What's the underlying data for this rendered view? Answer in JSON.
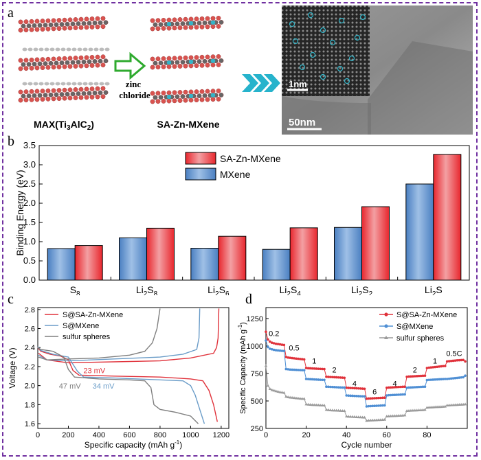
{
  "panel_letters": {
    "a": "a",
    "b": "b",
    "c": "c",
    "d": "d"
  },
  "panel_a": {
    "max_label_main": "MAX(Ti",
    "max_sub3": "3",
    "max_alc": "AlC",
    "max_sub2": "2",
    "max_close": ")",
    "arrow_text_line1": "zinc",
    "arrow_text_line2": "chloride",
    "mxene_label": "SA-Zn-MXene",
    "scale_small": "1nm",
    "scale_large": "50nm",
    "colors": {
      "ti": "#d9534f",
      "c": "#666666",
      "al": "#bbbbbb",
      "zn": "#33b5c9",
      "arrow": "#2eaa2e",
      "chevrons": "#26b3cc"
    }
  },
  "chart_data": [
    {
      "id": "b",
      "type": "bar",
      "ylabel": "Binding Energy (eV)",
      "ylim": [
        0,
        3.5
      ],
      "yticks": [
        "0.0",
        "0.5",
        "1.0",
        "1.5",
        "2.0",
        "2.5",
        "3.0",
        "3.5"
      ],
      "categories": [
        "S8",
        "Li2S8",
        "Li2S6",
        "Li2S4",
        "Li2S2",
        "Li2S"
      ],
      "category_labels": [
        {
          "base": "S",
          "sub": "8",
          "tail": "",
          "sub2": ""
        },
        {
          "base": "Li",
          "sub": "2",
          "tail": "S",
          "sub2": "8"
        },
        {
          "base": "Li",
          "sub": "2",
          "tail": "S",
          "sub2": "6"
        },
        {
          "base": "Li",
          "sub": "2",
          "tail": "S",
          "sub2": "4"
        },
        {
          "base": "Li",
          "sub": "2",
          "tail": "S",
          "sub2": "2"
        },
        {
          "base": "Li",
          "sub": "2",
          "tail": "S",
          "sub2": ""
        }
      ],
      "series": [
        {
          "name": "MXene",
          "color": "#4a7fc1",
          "values": [
            0.82,
            1.1,
            0.83,
            0.8,
            1.37,
            2.5
          ]
        },
        {
          "name": "SA-Zn-MXene",
          "color": "#e8262d",
          "values": [
            0.9,
            1.35,
            1.14,
            1.36,
            1.91,
            3.27
          ]
        }
      ],
      "legend": "top-center"
    },
    {
      "id": "c",
      "type": "line",
      "xlabel": "Specific capacity (mAh g",
      "xlabel_sup": "-1",
      "xlabel_close": ")",
      "ylabel": "Voltage (V)",
      "xlim": [
        0,
        1250
      ],
      "ylim": [
        1.55,
        2.82
      ],
      "xticks": [
        "0",
        "200",
        "400",
        "600",
        "800",
        "1000",
        "1200"
      ],
      "yticks": [
        "1.6",
        "1.8",
        "2.0",
        "2.2",
        "2.4",
        "2.6",
        "2.8"
      ],
      "legend": "top-left",
      "annotations": [
        {
          "text": "23 mV",
          "color": "#e0313a",
          "x": 370,
          "y": 2.13
        },
        {
          "text": "34 mV",
          "color": "#6a9cc8",
          "x": 430,
          "y": 1.97
        },
        {
          "text": "47 mV",
          "color": "#7f7f7f",
          "x": 210,
          "y": 1.97
        }
      ],
      "series": [
        {
          "name": "S@SA-Zn-MXene",
          "color": "#e0313a",
          "discharge": [
            [
              0,
              2.4
            ],
            [
              20,
              2.36
            ],
            [
              80,
              2.33
            ],
            [
              150,
              2.31
            ],
            [
              200,
              2.27
            ],
            [
              230,
              2.16
            ],
            [
              270,
              2.11
            ],
            [
              500,
              2.1
            ],
            [
              800,
              2.09
            ],
            [
              1000,
              2.07
            ],
            [
              1080,
              2.05
            ],
            [
              1120,
              1.95
            ],
            [
              1150,
              1.8
            ],
            [
              1175,
              1.62
            ]
          ],
          "charge": [
            [
              5,
              2.34
            ],
            [
              60,
              2.27
            ],
            [
              200,
              2.24
            ],
            [
              500,
              2.25
            ],
            [
              800,
              2.26
            ],
            [
              1000,
              2.29
            ],
            [
              1150,
              2.34
            ],
            [
              1170,
              2.4
            ],
            [
              1180,
              2.5
            ],
            [
              1185,
              2.81
            ]
          ]
        },
        {
          "name": "S@MXene",
          "color": "#6a9cc8",
          "discharge": [
            [
              0,
              2.41
            ],
            [
              20,
              2.37
            ],
            [
              100,
              2.33
            ],
            [
              200,
              2.3
            ],
            [
              260,
              2.15
            ],
            [
              300,
              2.09
            ],
            [
              500,
              2.08
            ],
            [
              800,
              2.06
            ],
            [
              950,
              2.05
            ],
            [
              1000,
              2.0
            ],
            [
              1030,
              1.9
            ],
            [
              1060,
              1.75
            ],
            [
              1090,
              1.6
            ]
          ],
          "charge": [
            [
              5,
              2.32
            ],
            [
              60,
              2.27
            ],
            [
              200,
              2.26
            ],
            [
              500,
              2.28
            ],
            [
              800,
              2.3
            ],
            [
              950,
              2.33
            ],
            [
              1040,
              2.38
            ],
            [
              1055,
              2.5
            ],
            [
              1060,
              2.81
            ]
          ]
        },
        {
          "name": "sulfur spheres",
          "color": "#7f7f7f",
          "discharge": [
            [
              0,
              2.4
            ],
            [
              20,
              2.38
            ],
            [
              100,
              2.36
            ],
            [
              170,
              2.3
            ],
            [
              200,
              2.17
            ],
            [
              240,
              2.09
            ],
            [
              400,
              2.07
            ],
            [
              600,
              2.06
            ],
            [
              700,
              2.05
            ],
            [
              740,
              1.98
            ],
            [
              760,
              1.8
            ],
            [
              800,
              1.75
            ],
            [
              900,
              1.72
            ],
            [
              1000,
              1.68
            ],
            [
              1050,
              1.6
            ]
          ],
          "charge": [
            [
              5,
              2.3
            ],
            [
              60,
              2.27
            ],
            [
              200,
              2.28
            ],
            [
              400,
              2.29
            ],
            [
              600,
              2.32
            ],
            [
              700,
              2.36
            ],
            [
              750,
              2.45
            ],
            [
              780,
              2.6
            ],
            [
              800,
              2.81
            ]
          ]
        }
      ]
    },
    {
      "id": "d",
      "type": "line",
      "xlabel": "Cycle number",
      "ylabel": "Specific Capacity (mAh g",
      "ylabel_sup": "-1",
      "ylabel_close": ")",
      "xlim": [
        0,
        100
      ],
      "ylim": [
        250,
        1350
      ],
      "xticks": [
        "0",
        "20",
        "40",
        "60",
        "80"
      ],
      "yticks": [
        "250",
        "500",
        "750",
        "1000",
        "1250"
      ],
      "legend": "top-right",
      "rate_labels": [
        {
          "text": "0.2",
          "x": 4,
          "y": 1090
        },
        {
          "text": "0.5",
          "x": 14,
          "y": 960
        },
        {
          "text": "1",
          "x": 24,
          "y": 840
        },
        {
          "text": "2",
          "x": 34,
          "y": 760
        },
        {
          "text": "4",
          "x": 44,
          "y": 635
        },
        {
          "text": "6",
          "x": 54,
          "y": 560
        },
        {
          "text": "4",
          "x": 64,
          "y": 635
        },
        {
          "text": "2",
          "x": 74,
          "y": 760
        },
        {
          "text": "1",
          "x": 84,
          "y": 840
        },
        {
          "text": "0.5C",
          "x": 93.5,
          "y": 910
        }
      ],
      "series": [
        {
          "name": "S@SA-Zn-MXene",
          "color": "#e0313a",
          "marker": "circle",
          "y": [
            1130,
            1060,
            1040,
            1030,
            1025,
            1020,
            1018,
            1015,
            1012,
            1010,
            900,
            895,
            893,
            890,
            888,
            886,
            884,
            882,
            880,
            878,
            800,
            798,
            797,
            796,
            795,
            794,
            793,
            792,
            791,
            790,
            720,
            719,
            718,
            717,
            716,
            715,
            714,
            713,
            712,
            711,
            620,
            619,
            618,
            617,
            616,
            615,
            614,
            613,
            612,
            611,
            520,
            522,
            523,
            524,
            525,
            526,
            527,
            528,
            529,
            530,
            620,
            622,
            623,
            624,
            625,
            626,
            627,
            628,
            629,
            630,
            720,
            722,
            723,
            724,
            725,
            726,
            727,
            728,
            729,
            730,
            800,
            803,
            805,
            807,
            809,
            811,
            813,
            815,
            817,
            818,
            860,
            862,
            864,
            866,
            868,
            870,
            871,
            872,
            873,
            860
          ]
        },
        {
          "name": "S@MXene",
          "color": "#4f8fd4",
          "marker": "circle",
          "y": [
            1050,
            990,
            975,
            970,
            965,
            962,
            960,
            958,
            956,
            955,
            790,
            788,
            786,
            785,
            784,
            783,
            782,
            781,
            780,
            780,
            700,
            699,
            698,
            697,
            696,
            695,
            694,
            693,
            692,
            692,
            630,
            629,
            628,
            627,
            626,
            625,
            624,
            623,
            622,
            622,
            550,
            549,
            548,
            547,
            546,
            545,
            544,
            543,
            542,
            542,
            450,
            452,
            453,
            454,
            455,
            456,
            457,
            458,
            459,
            460,
            550,
            552,
            553,
            554,
            555,
            556,
            557,
            558,
            559,
            560,
            620,
            622,
            623,
            624,
            625,
            626,
            627,
            628,
            629,
            630,
            690,
            692,
            693,
            694,
            695,
            696,
            697,
            698,
            699,
            700,
            700,
            702,
            704,
            706,
            708,
            710,
            712,
            714,
            716,
            730
          ]
        },
        {
          "name": "sulfur spheres",
          "color": "#9a9a9a",
          "marker": "triangle",
          "y": [
            820,
            640,
            610,
            600,
            595,
            590,
            585,
            580,
            578,
            575,
            540,
            535,
            532,
            530,
            528,
            526,
            524,
            522,
            520,
            520,
            470,
            468,
            466,
            465,
            464,
            463,
            462,
            461,
            460,
            460,
            420,
            418,
            416,
            415,
            414,
            413,
            412,
            411,
            410,
            410,
            360,
            358,
            357,
            356,
            355,
            354,
            353,
            352,
            351,
            350,
            320,
            322,
            323,
            324,
            325,
            326,
            327,
            328,
            329,
            330,
            360,
            361,
            362,
            363,
            364,
            365,
            366,
            367,
            368,
            370,
            410,
            411,
            412,
            413,
            414,
            415,
            416,
            417,
            418,
            420,
            440,
            441,
            442,
            443,
            444,
            445,
            446,
            447,
            448,
            450,
            460,
            461,
            462,
            463,
            464,
            465,
            466,
            467,
            468,
            470
          ]
        }
      ]
    }
  ]
}
